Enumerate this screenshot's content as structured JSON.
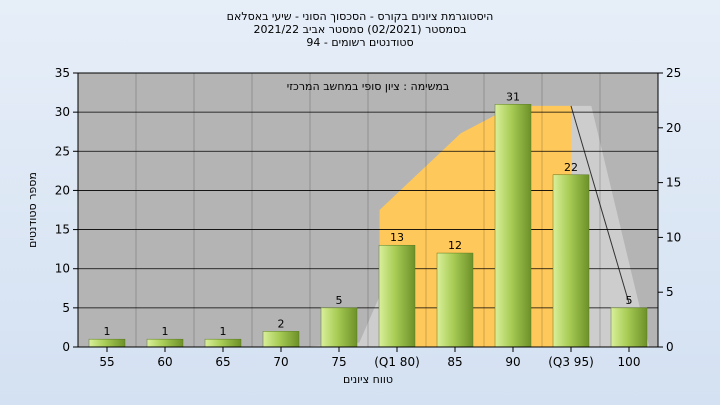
{
  "chart_data": {
    "type": "bar",
    "title_lines": [
      "היסטוגרמת ציונים בקורס - הסכסוך הסוני - שיעי באסלאם",
      "בסמסטר  (02/2021)  סמסטר אביב 2021/22",
      "סטודנטים רשומים - 94"
    ],
    "annotation": "במשימה : ציון סופי במחשב המרכזי",
    "categories": [
      "55",
      "60",
      "65",
      "70",
      "75",
      "(Q1 80)",
      "85",
      "90",
      "(Q3 95)",
      "100"
    ],
    "values": [
      1,
      1,
      1,
      2,
      5,
      13,
      12,
      31,
      22,
      5
    ],
    "ylabel": "מספר סטודנטים",
    "xlabel": "טווח ציונים",
    "ylim": [
      0,
      35
    ],
    "y_ticks": [
      "0",
      "5",
      "10",
      "15",
      "20",
      "25",
      "30",
      "35"
    ],
    "y2lim": [
      0,
      25
    ],
    "y2_ticks": [
      "0",
      "5",
      "10",
      "15",
      "20",
      "25"
    ],
    "grid": true,
    "colors": {
      "plot_bg": "#b4b4b4",
      "bar_light": "#d9ef9a",
      "bar_mid": "#a8cc55",
      "bar_dark": "#6d9128",
      "area_gold": "#ffc85a",
      "area_light": "#cfcfcf"
    }
  }
}
